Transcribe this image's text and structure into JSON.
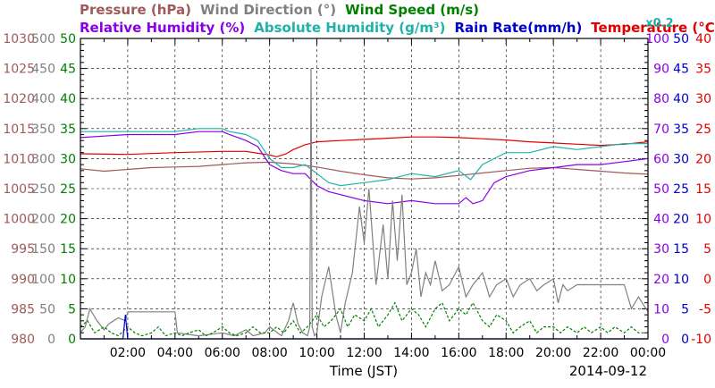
{
  "chart_data": {
    "type": "line",
    "date_label": "2014-09-12",
    "xlabel": "Time (JST)",
    "x_ticks": [
      "02:00",
      "04:00",
      "06:00",
      "08:00",
      "10:00",
      "12:00",
      "14:00",
      "16:00",
      "18:00",
      "20:00",
      "22:00",
      "00:00"
    ],
    "x_range_hours": [
      0,
      24
    ],
    "legend_row1": [
      {
        "text": "Pressure (hPa)",
        "color": "#a05a5a"
      },
      {
        "text": "Wind Direction (°)",
        "color": "#808080"
      },
      {
        "text": "Wind Speed (m/s)",
        "color": "#008000"
      }
    ],
    "legend_row2": [
      {
        "text": "Relative Humidity (%)",
        "color": "#8a00e6"
      },
      {
        "text": "Absolute Humidity (g/m³)",
        "color": "#20b2aa"
      },
      {
        "text": "Rain Rate(mm/h)",
        "color": "#0000cc"
      },
      {
        "text": "Temperature (°C)",
        "color": "#e00000"
      }
    ],
    "scale_note": {
      "text": "x0.2",
      "color": "#20b2aa"
    },
    "axes": {
      "pressure": {
        "color": "#a05a5a",
        "min": 980,
        "max": 1030,
        "labels": [
          "980",
          "985",
          "990",
          "995",
          "1000",
          "1005",
          "1010",
          "1015",
          "1020",
          "1025",
          "1030"
        ]
      },
      "wind_direction": {
        "color": "#808080",
        "min": 0,
        "max": 500,
        "labels": [
          "0",
          "50",
          "100",
          "150",
          "200",
          "250",
          "300",
          "350",
          "400",
          "450",
          "500"
        ]
      },
      "wind_speed": {
        "color": "#008000",
        "min": 0,
        "max": 50,
        "labels": [
          "0",
          "5",
          "10",
          "15",
          "20",
          "25",
          "30",
          "35",
          "40",
          "45",
          "50"
        ]
      },
      "humidity": {
        "color": "#8a00e6",
        "min": 0,
        "max": 100,
        "labels": [
          "0",
          "10",
          "20",
          "30",
          "40",
          "50",
          "60",
          "70",
          "80",
          "90",
          "100"
        ]
      },
      "rain_rate": {
        "color": "#0000cc",
        "min": 0,
        "max": 50,
        "labels": [
          "0",
          "5",
          "10",
          "15",
          "20",
          "25",
          "30",
          "35",
          "40",
          "45",
          "50"
        ]
      },
      "temperature": {
        "color": "#e00000",
        "min": -10,
        "max": 40,
        "labels": [
          "-10",
          "-5",
          "0",
          "5",
          "10",
          "15",
          "20",
          "25",
          "30",
          "35",
          "40"
        ]
      }
    },
    "series": [
      {
        "name": "Temperature (°C)",
        "color": "#e00000",
        "axis": "temperature",
        "x": [
          0,
          2,
          4,
          6,
          7,
          7.5,
          8,
          8.3,
          8.7,
          9,
          9.5,
          10,
          11,
          12,
          13,
          14,
          15,
          16,
          17,
          18,
          19,
          20,
          21,
          22,
          23,
          24
        ],
        "y": [
          20.8,
          20.7,
          21,
          21.2,
          21.2,
          20.9,
          20.6,
          20.3,
          20.8,
          21.5,
          22.3,
          22.8,
          23,
          23.2,
          23.4,
          23.6,
          23.6,
          23.5,
          23.3,
          23.1,
          22.8,
          22.6,
          22.4,
          22.2,
          22.4,
          22.8
        ]
      },
      {
        "name": "Pressure (hPa)",
        "color": "#a05a5a",
        "axis": "pressure",
        "x": [
          0,
          1,
          2,
          3,
          4,
          5,
          6,
          7,
          8,
          9,
          10,
          11,
          12,
          13,
          14,
          15,
          16,
          17,
          18,
          19,
          20,
          21,
          22,
          23,
          24
        ],
        "y": [
          1008.3,
          1007.9,
          1008.2,
          1008.5,
          1008.6,
          1008.7,
          1009,
          1009.3,
          1009.4,
          1009.1,
          1008.6,
          1007.9,
          1007.3,
          1006.8,
          1006.6,
          1006.8,
          1007.2,
          1007.6,
          1008,
          1008.4,
          1008.5,
          1008.2,
          1007.9,
          1007.6,
          1007.4
        ]
      },
      {
        "name": "Relative Humidity (%)",
        "color": "#8a00e6",
        "axis": "humidity",
        "x": [
          0,
          2,
          4,
          5,
          6,
          6.3,
          7,
          7.5,
          8,
          8.5,
          9,
          9.5,
          10,
          10.5,
          11,
          12,
          13,
          14,
          15,
          16,
          16.3,
          16.6,
          17,
          17.5,
          18,
          19,
          20,
          21,
          22,
          23,
          24
        ],
        "y": [
          67,
          68,
          68,
          69,
          69,
          68,
          66,
          64,
          58,
          56,
          55,
          55,
          51,
          49,
          48,
          46,
          45,
          46,
          45,
          45,
          47,
          45,
          46,
          52,
          54,
          56,
          57,
          58,
          58,
          59,
          60
        ]
      },
      {
        "name": "Absolute Humidity (g/m³)",
        "color": "#20b2aa",
        "axis": "humidity",
        "x": [
          0,
          2,
          4,
          5,
          6,
          6.3,
          7,
          7.5,
          8,
          8.5,
          9,
          9.5,
          10,
          10.5,
          11,
          12,
          13,
          14,
          15,
          16,
          16.5,
          17,
          17.5,
          18,
          19,
          20,
          21,
          22,
          23,
          24
        ],
        "y": [
          69,
          69,
          69,
          70,
          70,
          69,
          68,
          66,
          60,
          57,
          57,
          58,
          55,
          52,
          51,
          52,
          53,
          55,
          54,
          56,
          53,
          58,
          60,
          62,
          62,
          64,
          63,
          64,
          65,
          65
        ]
      },
      {
        "name": "Wind Direction (°)",
        "color": "#808080",
        "axis": "wind_direction",
        "x": [
          0,
          0.2,
          0.4,
          0.7,
          1,
          1.2,
          1.6,
          1.9,
          2,
          4,
          4.1,
          5,
          6,
          6.5,
          7,
          7.3,
          7.8,
          8,
          8.5,
          8.8,
          9,
          9.2,
          9.4,
          9.6,
          9.7,
          9.75,
          9.8,
          9.9,
          10,
          10.2,
          10.5,
          10.8,
          11,
          11.2,
          11.5,
          11.8,
          12,
          12.2,
          12.5,
          12.8,
          13,
          13.2,
          13.4,
          13.6,
          13.8,
          14,
          14.2,
          14.4,
          14.6,
          14.8,
          15,
          15.3,
          15.6,
          16,
          16.3,
          16.6,
          17,
          17.3,
          17.6,
          18,
          18.3,
          18.6,
          19,
          19.3,
          19.6,
          20,
          20.2,
          20.4,
          20.6,
          21,
          21.5,
          22,
          22.5,
          23,
          23.3,
          23.6,
          24
        ],
        "y": [
          10,
          20,
          50,
          30,
          15,
          25,
          35,
          30,
          45,
          45,
          10,
          5,
          10,
          5,
          15,
          5,
          10,
          20,
          5,
          30,
          60,
          25,
          10,
          5,
          20,
          450,
          20,
          5,
          10,
          70,
          120,
          40,
          10,
          60,
          110,
          220,
          160,
          250,
          90,
          190,
          100,
          230,
          130,
          240,
          90,
          110,
          150,
          70,
          110,
          90,
          130,
          80,
          90,
          120,
          70,
          90,
          110,
          70,
          90,
          100,
          70,
          90,
          100,
          80,
          90,
          100,
          60,
          90,
          80,
          90,
          90,
          90,
          90,
          90,
          50,
          70,
          45
        ]
      },
      {
        "name": "Wind Speed (m/s)",
        "color": "#008000",
        "axis": "wind_speed",
        "dash": true,
        "x": [
          0,
          0.3,
          0.6,
          1,
          1.3,
          1.6,
          2,
          2.3,
          2.6,
          3,
          3.3,
          3.6,
          4,
          4.3,
          4.6,
          5,
          5.3,
          5.6,
          6,
          6.3,
          6.6,
          7,
          7.3,
          7.6,
          8,
          8.3,
          8.6,
          9,
          9.3,
          9.6,
          10,
          10.3,
          10.6,
          11,
          11.3,
          11.6,
          12,
          12.3,
          12.6,
          13,
          13.3,
          13.6,
          14,
          14.3,
          14.6,
          15,
          15.3,
          15.6,
          16,
          16.3,
          16.6,
          17,
          17.3,
          17.6,
          18,
          18.3,
          18.6,
          19,
          19.3,
          19.6,
          20,
          20.3,
          20.6,
          21,
          21.3,
          21.6,
          22,
          22.3,
          22.6,
          23,
          23.3,
          23.6,
          24
        ],
        "y": [
          2,
          3,
          1,
          2,
          1,
          0.5,
          2,
          1,
          0.5,
          1,
          2,
          0.5,
          1,
          0.5,
          1,
          1.5,
          0.5,
          1,
          2,
          1,
          0.5,
          1,
          2,
          1,
          1,
          2,
          1,
          3,
          1,
          2,
          4,
          2,
          3,
          5,
          2,
          4,
          3,
          5,
          2,
          4,
          6,
          3,
          5,
          4,
          2,
          5,
          6,
          3,
          5,
          4,
          6,
          3,
          2,
          4,
          3,
          1,
          2,
          3,
          1,
          2,
          2,
          1,
          2,
          1,
          2,
          1,
          2,
          1,
          2,
          1,
          2,
          1,
          1
        ]
      },
      {
        "name": "Rain Rate(mm/h)",
        "color": "#0000cc",
        "axis": "rain_rate",
        "x": [
          0,
          1.8,
          1.85,
          1.9,
          1.95,
          2.0,
          2.05,
          24
        ],
        "y": [
          0,
          0,
          2,
          4,
          2,
          0,
          0,
          0
        ]
      }
    ]
  }
}
